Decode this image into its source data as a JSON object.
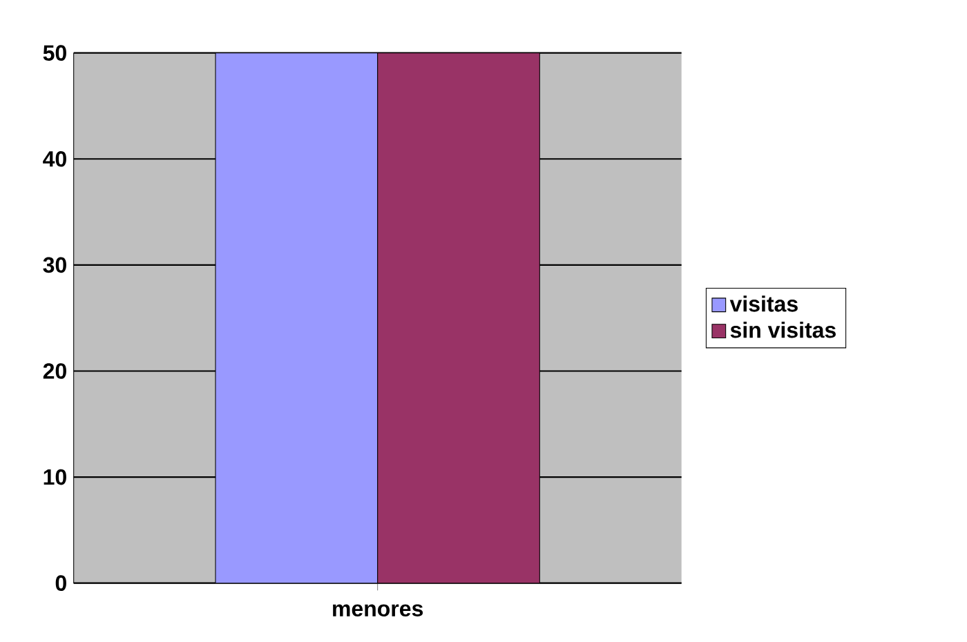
{
  "chart_data": {
    "type": "bar",
    "categories": [
      "menores"
    ],
    "series": [
      {
        "name": "visitas",
        "color": "#9999ff",
        "values": [
          50
        ]
      },
      {
        "name": "sin visitas",
        "color": "#993366",
        "values": [
          50
        ]
      }
    ],
    "ylim": [
      0,
      50
    ],
    "yticks": [
      0,
      10,
      20,
      30,
      40,
      50
    ],
    "grid": "y",
    "legend": "right"
  }
}
